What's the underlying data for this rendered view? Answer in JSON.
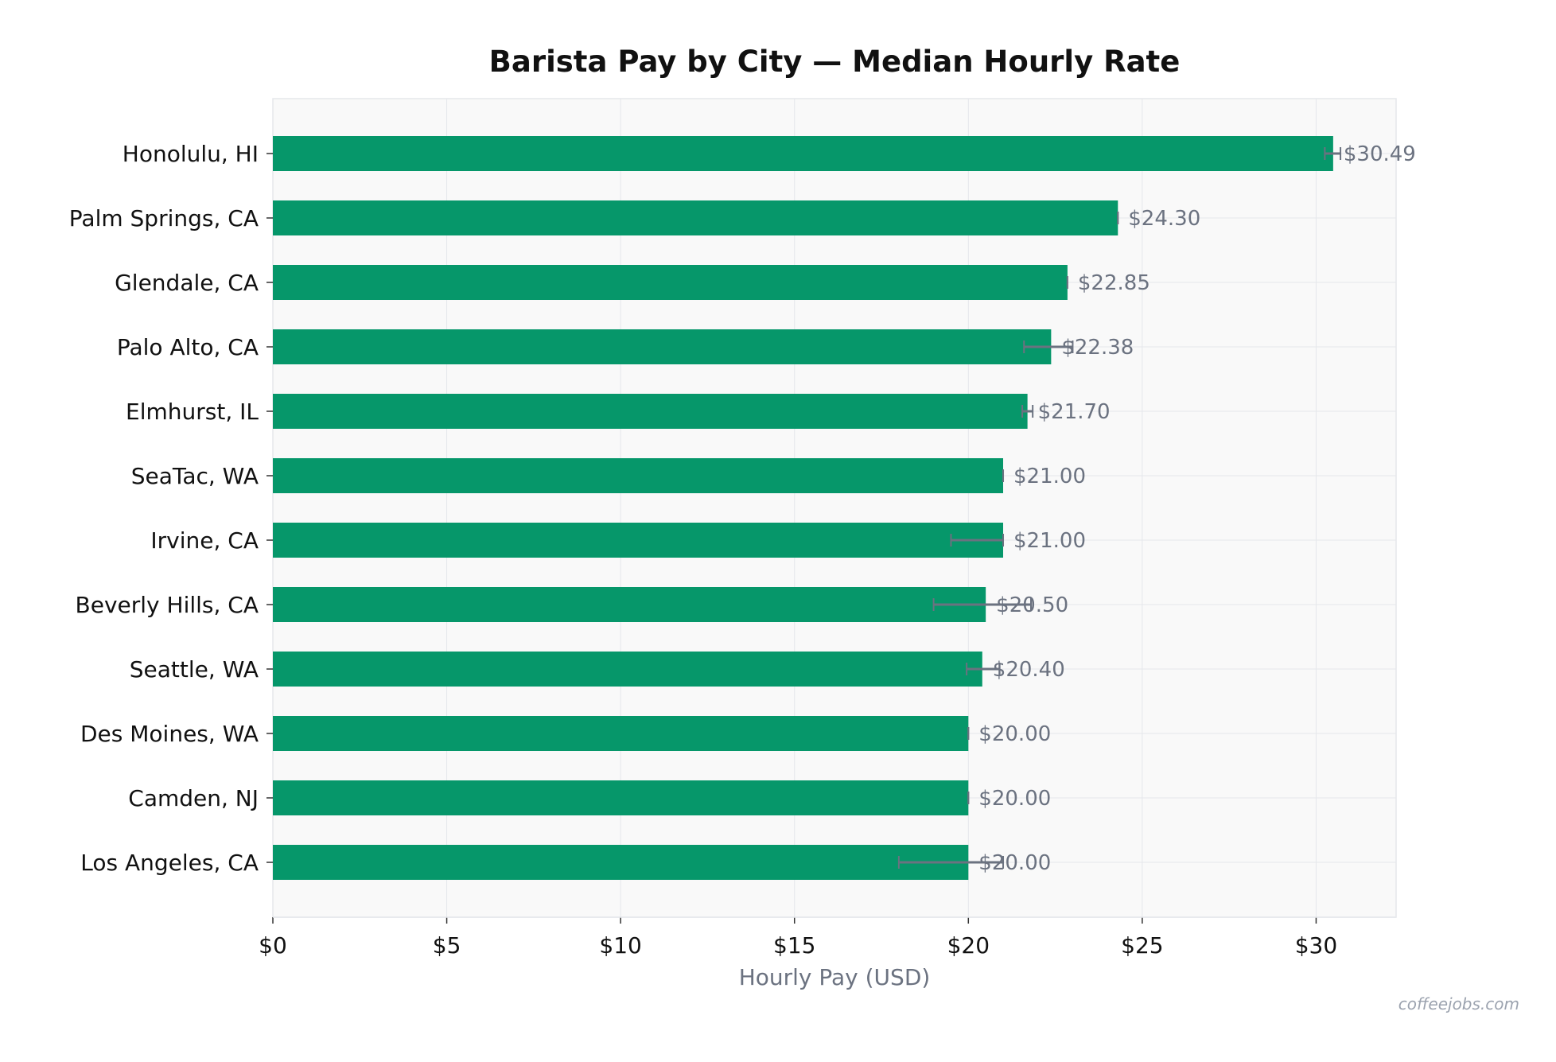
{
  "chart_data": {
    "type": "bar",
    "orientation": "horizontal",
    "title": "Barista Pay by City — Median Hourly Rate",
    "xlabel": "Hourly Pay (USD)",
    "ylabel": "",
    "categories": [
      "Honolulu, HI",
      "Palm Springs, CA",
      "Glendale, CA",
      "Palo Alto, CA",
      "Elmhurst, IL",
      "SeaTac, WA",
      "Irvine, CA",
      "Beverly Hills, CA",
      "Seattle, WA",
      "Des Moines, WA",
      "Camden, NJ",
      "Los Angeles, CA"
    ],
    "values": [
      30.49,
      24.3,
      22.85,
      22.38,
      21.7,
      21.0,
      21.0,
      20.5,
      20.4,
      20.0,
      20.0,
      20.0
    ],
    "value_labels": [
      "$30.49",
      "$24.30",
      "$22.85",
      "$22.38",
      "$21.70",
      "$21.00",
      "$21.00",
      "$20.50",
      "$20.40",
      "$20.00",
      "$20.00",
      "$20.00"
    ],
    "error_low": [
      30.25,
      24.3,
      22.85,
      21.6,
      21.55,
      21.0,
      19.5,
      19.0,
      19.95,
      20.0,
      20.0,
      18.0
    ],
    "error_high": [
      30.7,
      24.3,
      22.85,
      23.0,
      21.85,
      21.0,
      21.0,
      21.8,
      20.9,
      20.0,
      20.0,
      21.0
    ],
    "xlim": [
      0,
      32.3
    ],
    "xticks": [
      0,
      5,
      10,
      15,
      20,
      25,
      30
    ],
    "xtick_labels": [
      "$0",
      "$5",
      "$10",
      "$15",
      "$20",
      "$25",
      "$30"
    ],
    "grid": true,
    "colors": {
      "bar": "#06976a",
      "error_bar": "#6b7280",
      "value_label": "#6b7280",
      "plot_background": "#f9f9f9",
      "grid": "#e5e7eb",
      "axis_label": "#6b7280"
    }
  },
  "watermark": "coffeejobs.com"
}
